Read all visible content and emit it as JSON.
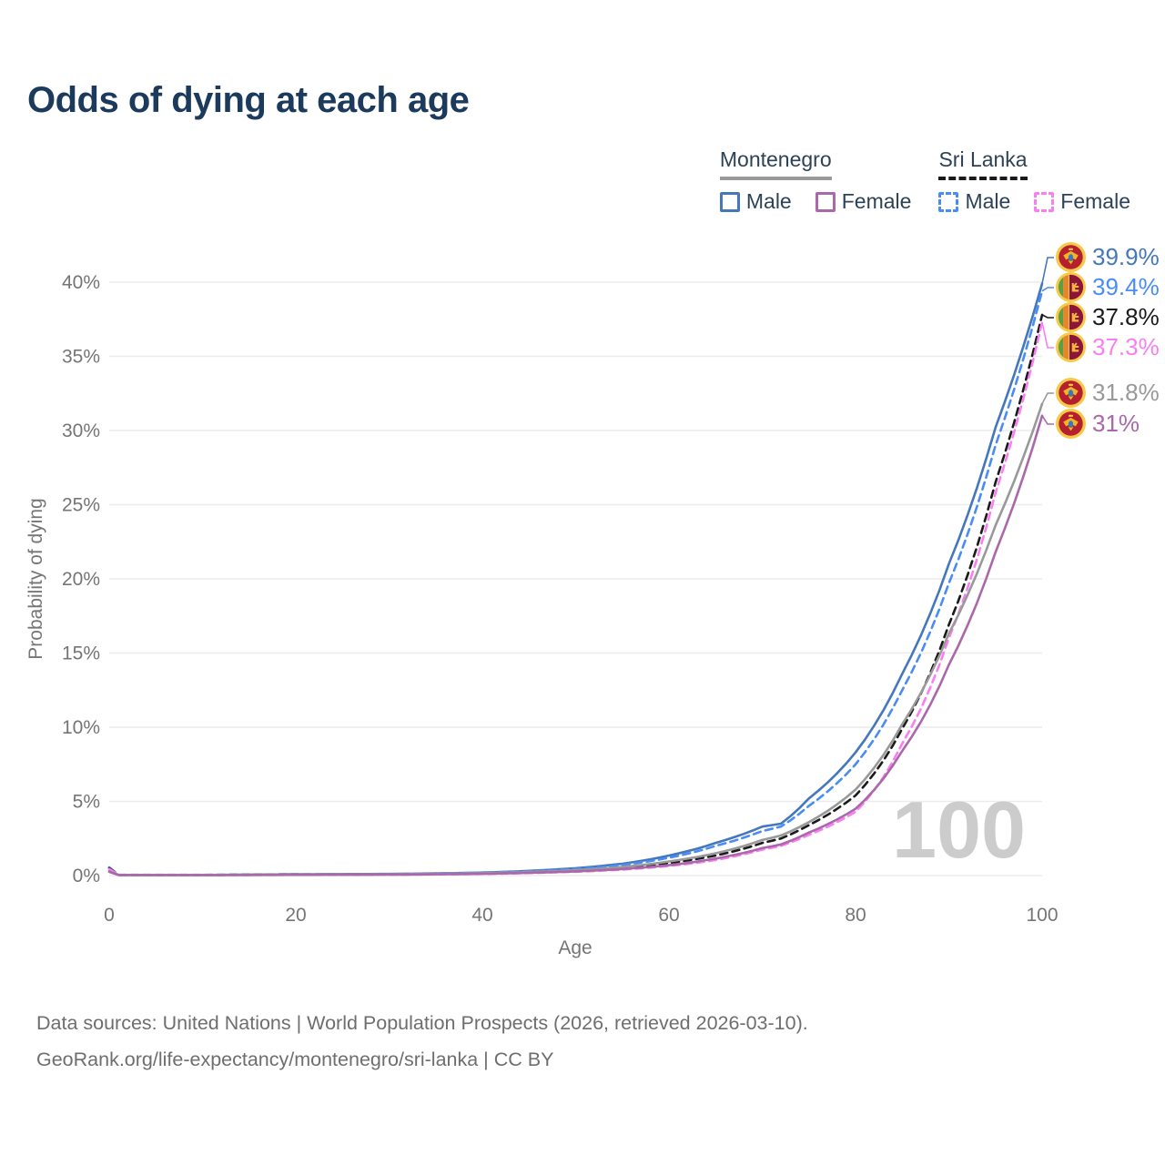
{
  "title": "Odds of dying at each age",
  "legend": {
    "groups": [
      {
        "name": "Montenegro",
        "line_style": "solid",
        "underline_color": "#999999",
        "items": [
          {
            "label": "Male",
            "color": "#4477bb"
          },
          {
            "label": "Female",
            "color": "#aa68aa"
          }
        ]
      },
      {
        "name": "Sri Lanka",
        "line_style": "dashed",
        "underline_color": "#1a1a1a",
        "items": [
          {
            "label": "Male",
            "color": "#4a8cf5"
          },
          {
            "label": "Female",
            "color": "#fa7ef2"
          }
        ]
      }
    ]
  },
  "chart_data": {
    "type": "line",
    "title": "Odds of dying at each age",
    "xlabel": "Age",
    "ylabel": "Probability of dying",
    "xlim": [
      0,
      100
    ],
    "ylim": [
      0,
      42
    ],
    "x_ticks": [
      0,
      20,
      40,
      60,
      80,
      100
    ],
    "y_ticks": [
      0,
      5,
      10,
      15,
      20,
      25,
      30,
      35,
      40
    ],
    "y_tick_labels": [
      "0%",
      "5%",
      "10%",
      "15%",
      "20%",
      "25%",
      "30%",
      "35%",
      "40%"
    ],
    "grid": "horizontal",
    "legend_position": "top-right",
    "watermark": "100",
    "x": [
      0,
      1,
      10,
      20,
      30,
      40,
      45,
      50,
      55,
      60,
      65,
      70,
      72,
      75,
      80,
      85,
      90,
      95,
      100
    ],
    "series": [
      {
        "name": "Montenegro Male",
        "country": "Montenegro",
        "sex": "Male",
        "color": "#4477bb",
        "dash": false,
        "flag": "montenegro-flag",
        "end_label": "39.9%",
        "end_value": 39.9,
        "values": [
          0.3,
          0.04,
          0.04,
          0.09,
          0.11,
          0.2,
          0.32,
          0.5,
          0.8,
          1.35,
          2.2,
          3.3,
          3.5,
          5.2,
          8.3,
          13.6,
          21.0,
          30.2,
          39.9
        ]
      },
      {
        "name": "Sri Lanka Male",
        "country": "Sri Lanka",
        "sex": "Male",
        "color": "#4a8cf5",
        "dash": true,
        "flag": "sri-lanka-flag",
        "end_label": "39.4%",
        "end_value": 39.4,
        "values": [
          0.55,
          0.05,
          0.05,
          0.09,
          0.1,
          0.19,
          0.29,
          0.45,
          0.72,
          1.2,
          2.0,
          3.0,
          3.3,
          4.7,
          7.5,
          12.5,
          19.7,
          29.0,
          39.4
        ]
      },
      {
        "name": "Sri Lanka (both sexes)",
        "country": "Sri Lanka",
        "sex": "Both",
        "color": "#1a1a1a",
        "dash": true,
        "flag": "sri-lanka-flag",
        "end_label": "37.8%",
        "end_value": 37.8,
        "values": [
          0.5,
          0.045,
          0.04,
          0.07,
          0.08,
          0.14,
          0.22,
          0.33,
          0.52,
          0.85,
          1.35,
          2.2,
          2.5,
          3.4,
          5.4,
          9.9,
          16.9,
          26.5,
          37.8
        ]
      },
      {
        "name": "Sri Lanka Female",
        "country": "Sri Lanka",
        "sex": "Female",
        "color": "#fa7ef2",
        "dash": true,
        "flag": "sri-lanka-flag",
        "end_label": "37.3%",
        "end_value": 37.3,
        "values": [
          0.45,
          0.04,
          0.03,
          0.05,
          0.06,
          0.11,
          0.17,
          0.26,
          0.4,
          0.65,
          1.05,
          1.75,
          2.0,
          2.75,
          4.3,
          8.9,
          16.0,
          25.8,
          37.3
        ]
      },
      {
        "name": "Montenegro (both sexes)",
        "country": "Montenegro",
        "sex": "Both",
        "color": "#999999",
        "dash": false,
        "flag": "montenegro-flag",
        "end_label": "31.8%",
        "end_value": 31.8,
        "values": [
          0.28,
          0.045,
          0.04,
          0.07,
          0.09,
          0.16,
          0.24,
          0.36,
          0.58,
          0.95,
          1.5,
          2.4,
          2.7,
          3.6,
          5.8,
          10.2,
          16.3,
          23.6,
          31.8
        ]
      },
      {
        "name": "Montenegro Female",
        "country": "Montenegro",
        "sex": "Female",
        "color": "#aa68aa",
        "dash": false,
        "flag": "montenegro-flag",
        "end_label": "31%",
        "end_value": 31.0,
        "values": [
          0.25,
          0.035,
          0.03,
          0.05,
          0.06,
          0.12,
          0.19,
          0.28,
          0.44,
          0.7,
          1.15,
          1.85,
          2.1,
          2.9,
          4.5,
          8.4,
          14.2,
          21.8,
          31.0
        ]
      }
    ]
  },
  "footer": {
    "line1": "Data sources: United Nations | World Population Prospects (2026, retrieved 2026-03-10).",
    "line2": "GeoRank.org/life-expectancy/montenegro/sri-lanka | CC BY"
  }
}
